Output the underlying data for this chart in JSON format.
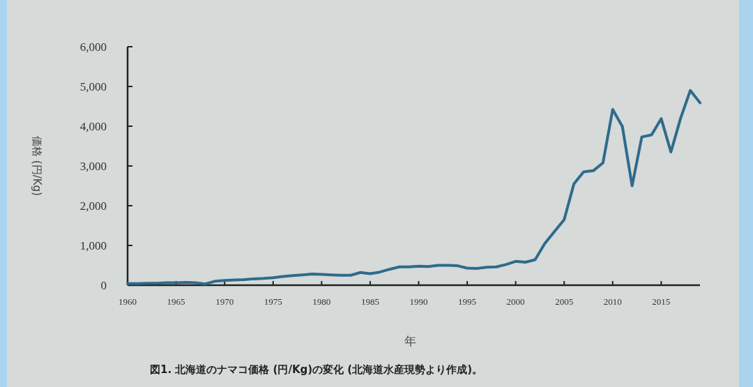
{
  "chart_data": {
    "type": "line",
    "xlabel": "年",
    "ylabel": "価格 (円/Kg)",
    "annotations": [
      "図1.  北海道のナマコ価格 (円/Kg)の変化 (北海道水産現勢より作成)。"
    ],
    "x": [
      1960,
      1961,
      1962,
      1963,
      1964,
      1965,
      1966,
      1967,
      1968,
      1969,
      1970,
      1971,
      1972,
      1973,
      1974,
      1975,
      1976,
      1977,
      1978,
      1979,
      1980,
      1981,
      1982,
      1983,
      1984,
      1985,
      1986,
      1987,
      1988,
      1989,
      1990,
      1991,
      1992,
      1993,
      1994,
      1995,
      1996,
      1997,
      1998,
      1999,
      2000,
      2001,
      2002,
      2003,
      2004,
      2005,
      2006,
      2007,
      2008,
      2009,
      2010,
      2011,
      2012,
      2013,
      2014,
      2015,
      2016,
      2017,
      2018,
      2019
    ],
    "series": [
      {
        "color": "#2f6b8c",
        "values": [
          40,
          40,
          50,
          50,
          60,
          60,
          70,
          60,
          30,
          100,
          120,
          130,
          140,
          160,
          170,
          190,
          220,
          240,
          260,
          280,
          270,
          260,
          250,
          250,
          320,
          290,
          330,
          400,
          460,
          460,
          480,
          470,
          500,
          500,
          490,
          430,
          420,
          450,
          460,
          520,
          600,
          580,
          640,
          1050,
          1350,
          1650,
          2550,
          2850,
          2880,
          3080,
          4420,
          3990,
          2500,
          3730,
          3780,
          4190,
          3350,
          4200,
          4900,
          4590
        ]
      }
    ],
    "xlim": [
      1960,
      2019
    ],
    "xticks": [
      1960,
      1965,
      1970,
      1975,
      1980,
      1985,
      1990,
      1995,
      2000,
      2005,
      2010,
      2015
    ],
    "ylim": [
      0,
      6000
    ],
    "yticks": [
      0,
      {
        "value": 1000,
        "label": "1,000"
      },
      {
        "value": 2000,
        "label": "2,000"
      },
      {
        "value": 3000,
        "label": "3,000"
      },
      {
        "value": 4000,
        "label": "4,000"
      },
      {
        "value": 5000,
        "label": "5,000"
      },
      {
        "value": 6000,
        "label": "6,000"
      }
    ],
    "grid": false,
    "marker": "none",
    "line_style": "solid"
  }
}
